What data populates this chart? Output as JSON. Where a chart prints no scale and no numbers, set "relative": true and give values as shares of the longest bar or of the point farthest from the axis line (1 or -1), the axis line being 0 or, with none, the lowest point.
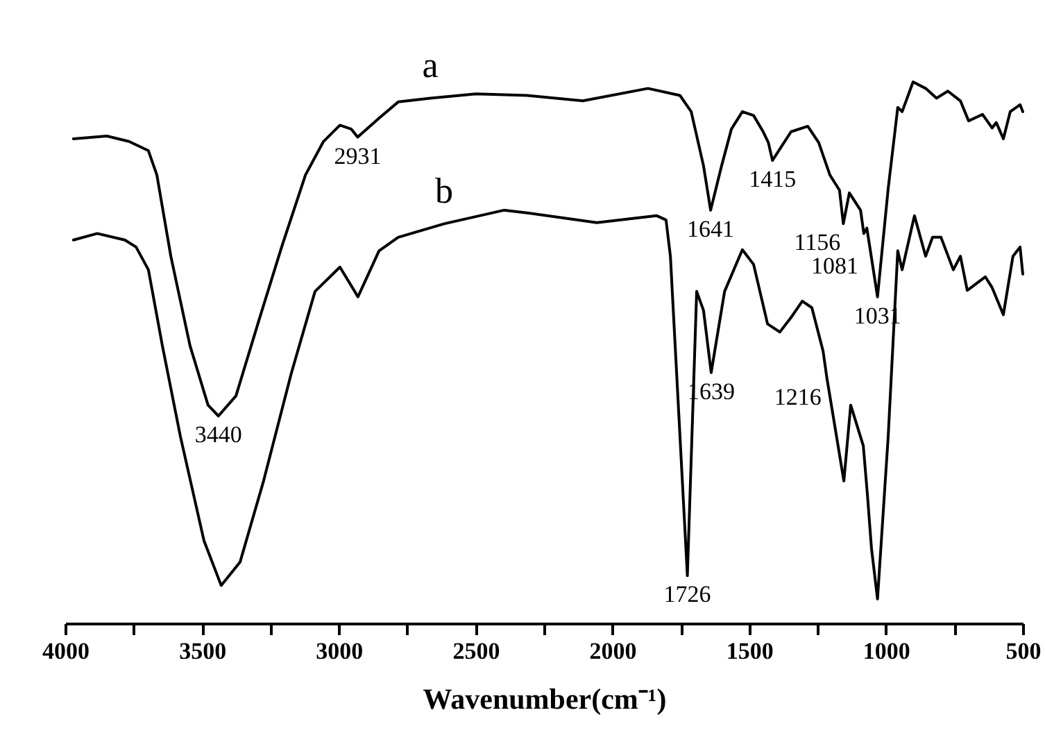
{
  "chart_data": {
    "type": "line",
    "relative": true,
    "xlabel": "Wavenumber(cm⁻¹)",
    "xlim": [
      4000,
      500
    ],
    "xticks": [
      4000,
      {
        "value": 3750,
        "label": null
      },
      3500,
      {
        "value": 3250,
        "label": null
      },
      3000,
      {
        "value": 2750,
        "label": null
      },
      2500,
      {
        "value": 2250,
        "label": null
      },
      2000,
      {
        "value": 1750,
        "label": null
      },
      1500,
      {
        "value": 1250,
        "label": null
      },
      1000,
      {
        "value": 750,
        "label": null
      },
      500
    ],
    "series": [
      {
        "name": "a",
        "color": "#000000",
        "x": [
          3970,
          3848,
          3767,
          3696,
          3665,
          3614,
          3544,
          3478,
          3440,
          3376,
          3290,
          3209,
          3122,
          3056,
          2996,
          2955,
          2931,
          2853,
          2783,
          2666,
          2499,
          2311,
          2108,
          1870,
          1753,
          1712,
          1667,
          1641,
          1601,
          1565,
          1525,
          1484,
          1449,
          1430,
          1415,
          1347,
          1286,
          1246,
          1205,
          1170,
          1156,
          1134,
          1093,
          1081,
          1070,
          1031,
          992,
          957,
          941,
          901,
          855,
          815,
          774,
          728,
          698,
          647,
          612,
          597,
          571,
          546,
          510,
          500
        ],
        "values": [
          0.895,
          0.9,
          0.89,
          0.873,
          0.828,
          0.678,
          0.513,
          0.403,
          0.383,
          0.42,
          0.563,
          0.695,
          0.828,
          0.89,
          0.92,
          0.913,
          0.898,
          0.933,
          0.963,
          0.97,
          0.978,
          0.975,
          0.965,
          0.988,
          0.975,
          0.945,
          0.845,
          0.763,
          0.845,
          0.913,
          0.945,
          0.938,
          0.908,
          0.888,
          0.855,
          0.908,
          0.918,
          0.888,
          0.828,
          0.8,
          0.738,
          0.795,
          0.763,
          0.72,
          0.73,
          0.603,
          0.803,
          0.953,
          0.945,
          1,
          0.988,
          0.97,
          0.983,
          0.965,
          0.928,
          0.94,
          0.915,
          0.925,
          0.895,
          0.945,
          0.958,
          0.945
        ]
      },
      {
        "name": "b",
        "color": "#000000",
        "x": [
          3970,
          3883,
          3782,
          3741,
          3696,
          3645,
          3579,
          3493,
          3430,
          3361,
          3275,
          3173,
          3087,
          2996,
          2930,
          2853,
          2783,
          2615,
          2397,
          2311,
          2057,
          1839,
          1804,
          1788,
          1726,
          1692,
          1667,
          1639,
          1590,
          1525,
          1484,
          1433,
          1388,
          1347,
          1306,
          1271,
          1230,
          1216,
          1154,
          1129,
          1083,
          1068,
          1053,
          1031,
          992,
          957,
          941,
          896,
          855,
          830,
          799,
          754,
          728,
          703,
          637,
          612,
          571,
          536,
          510,
          500
        ],
        "values": [
          0.708,
          0.72,
          0.708,
          0.695,
          0.653,
          0.513,
          0.345,
          0.153,
          0.07,
          0.113,
          0.263,
          0.463,
          0.613,
          0.658,
          0.603,
          0.688,
          0.713,
          0.738,
          0.763,
          0.758,
          0.74,
          0.753,
          0.745,
          0.678,
          0.088,
          0.613,
          0.578,
          0.463,
          0.613,
          0.69,
          0.663,
          0.553,
          0.538,
          0.565,
          0.595,
          0.583,
          0.503,
          0.453,
          0.263,
          0.403,
          0.328,
          0.238,
          0.138,
          0.045,
          0.345,
          0.688,
          0.653,
          0.753,
          0.678,
          0.713,
          0.713,
          0.653,
          0.678,
          0.615,
          0.64,
          0.62,
          0.57,
          0.678,
          0.695,
          0.645
        ]
      }
    ],
    "annotations": [
      {
        "text": "3440",
        "x": 3440,
        "y": 0.383
      },
      {
        "text": "2931",
        "x": 2931,
        "y": 0.898
      },
      {
        "text": "1641",
        "x": 1641,
        "y": 0.763
      },
      {
        "text": "1415",
        "x": 1415,
        "y": 0.855
      },
      {
        "text": "1156",
        "x": 1156,
        "y": 0.738
      },
      {
        "text": "1081",
        "x": 1081,
        "y": 0.72
      },
      {
        "text": "1031",
        "x": 1031,
        "y": 0.603
      },
      {
        "text": "1726",
        "x": 1726,
        "y": 0.088
      },
      {
        "text": "1639",
        "x": 1639,
        "y": 0.463
      },
      {
        "text": "1216",
        "x": 1216,
        "y": 0.453
      }
    ]
  }
}
